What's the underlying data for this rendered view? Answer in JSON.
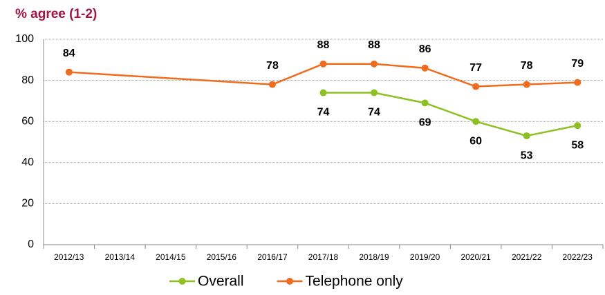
{
  "chart_data": {
    "type": "line",
    "title": "% agree (1-2)",
    "categories": [
      "2012/13",
      "2013/14",
      "2014/15",
      "2015/16",
      "2016/17",
      "2017/18",
      "2018/19",
      "2019/20",
      "2020/21",
      "2021/22",
      "2022/23"
    ],
    "series": [
      {
        "name": "Overall",
        "color": "#8cc11f",
        "values": [
          null,
          null,
          null,
          null,
          null,
          74,
          74,
          69,
          60,
          53,
          58
        ]
      },
      {
        "name": "Telephone only",
        "color": "#f26a1b",
        "values": [
          84,
          null,
          null,
          null,
          78,
          88,
          88,
          86,
          77,
          78,
          79
        ]
      }
    ],
    "ylim": [
      0,
      100
    ],
    "yticks": [
      0,
      20,
      40,
      60,
      80,
      100
    ],
    "grid": true,
    "span_gaps": true,
    "legend": "bottom"
  }
}
